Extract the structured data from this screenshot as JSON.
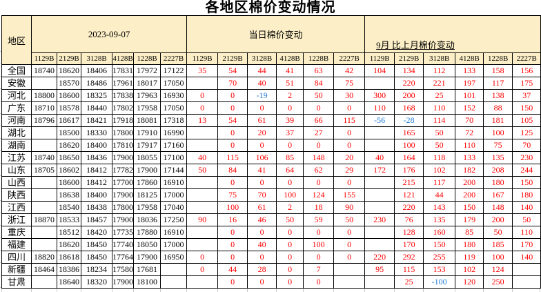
{
  "title": "各地区棉价变动情况",
  "table": {
    "region_header": "地区",
    "groups": [
      {
        "id": "date",
        "label": "2023-09-07",
        "columns": [
          "1129B",
          "2129B",
          "3128B",
          "4128B",
          "1228B",
          "2227B"
        ]
      },
      {
        "id": "daily_change",
        "label": "当日棉价变动",
        "columns": [
          "1129B",
          "2129B",
          "3128B",
          "4128B",
          "1228B",
          "2227B"
        ]
      },
      {
        "id": "monthly_change",
        "label": "9月 比上月棉价变动",
        "columns": [
          "1129B",
          "2129B",
          "3128B",
          "4128B",
          "1228B",
          "2227B"
        ]
      }
    ],
    "rows": [
      {
        "region": "全国",
        "prices": [
          "18740",
          "18620",
          "18406",
          "17831",
          "17972",
          "17122"
        ],
        "daily_change": [
          "35",
          "54",
          "44",
          "41",
          "63",
          "42"
        ],
        "monthly_change": [
          "104",
          "134",
          "112",
          "133",
          "158",
          "156"
        ]
      },
      {
        "region": "安徽",
        "prices": [
          "",
          "18570",
          "18486",
          "17961",
          "18017",
          "17050"
        ],
        "daily_change": [
          "",
          "70",
          "40",
          "51",
          "84",
          "75"
        ],
        "monthly_change": [
          "",
          "220",
          "221",
          "197",
          "117",
          "175"
        ]
      },
      {
        "region": "河北",
        "prices": [
          "18800",
          "18600",
          "18325",
          "17838",
          "17963",
          "16930"
        ],
        "daily_change": [
          "0",
          "0",
          "-19",
          "2",
          "50",
          "30"
        ],
        "monthly_change": [
          "300",
          "200",
          "25",
          "101",
          "138",
          "37"
        ]
      },
      {
        "region": "广东",
        "prices": [
          "18710",
          "18578",
          "18440",
          "17802",
          "17958",
          "17050"
        ],
        "daily_change": [
          "0",
          "0",
          "0",
          "0",
          "0",
          "0"
        ],
        "monthly_change": [
          "110",
          "168",
          "110",
          "152",
          "88",
          "150"
        ]
      },
      {
        "region": "河南",
        "prices": [
          "18796",
          "18617",
          "18421",
          "17918",
          "18081",
          "17318"
        ],
        "daily_change": [
          "13",
          "54",
          "61",
          "39",
          "66",
          "115"
        ],
        "monthly_change": [
          "-56",
          "-28",
          "114",
          "70",
          "181",
          "105"
        ]
      },
      {
        "region": "湖北",
        "prices": [
          "",
          "18500",
          "18330",
          "17800",
          "17910",
          "16990"
        ],
        "daily_change": [
          "",
          "0",
          "20",
          "37",
          "27",
          "0"
        ],
        "monthly_change": [
          "",
          "165",
          "50",
          "72",
          "100",
          "125"
        ]
      },
      {
        "region": "湖南",
        "prices": [
          "",
          "18620",
          "18400",
          "17810",
          "17917",
          "17160"
        ],
        "daily_change": [
          "",
          "0",
          "0",
          "0",
          "0",
          "0"
        ],
        "monthly_change": [
          "",
          "100",
          "50",
          "110",
          "75",
          "70"
        ]
      },
      {
        "region": "江苏",
        "prices": [
          "18740",
          "18650",
          "18436",
          "17900",
          "18055",
          "17100"
        ],
        "daily_change": [
          "40",
          "115",
          "106",
          "85",
          "148",
          "20"
        ],
        "monthly_change": [
          "40",
          "164",
          "118",
          "133",
          "135",
          "230"
        ]
      },
      {
        "region": "山东",
        "prices": [
          "18705",
          "18602",
          "18412",
          "17782",
          "17900",
          "17144"
        ],
        "daily_change": [
          "50",
          "84",
          "41",
          "64",
          "62",
          "29"
        ],
        "monthly_change": [
          "172",
          "176",
          "102",
          "182",
          "208",
          "244"
        ]
      },
      {
        "region": "山西",
        "prices": [
          "",
          "18600",
          "18412",
          "17700",
          "17860",
          "16910"
        ],
        "daily_change": [
          "",
          "0",
          "0",
          "0",
          "0",
          "0"
        ],
        "monthly_change": [
          "",
          "215",
          "117",
          "200",
          "180",
          "150"
        ]
      },
      {
        "region": "陕西",
        "prices": [
          "",
          "18638",
          "18400",
          "17900",
          "18125",
          "17000"
        ],
        "daily_change": [
          "",
          "75",
          "70",
          "100",
          "124",
          "155"
        ],
        "monthly_change": [
          "",
          "121",
          "44",
          "200",
          "167",
          "180"
        ]
      },
      {
        "region": "江西",
        "prices": [
          "",
          "18540",
          "18438",
          "17800",
          "17958",
          "17040"
        ],
        "daily_change": [
          "",
          "100",
          "61",
          "2",
          "18",
          "90"
        ],
        "monthly_change": [
          "",
          "220",
          "143",
          "150",
          "148",
          "140"
        ]
      },
      {
        "region": "浙江",
        "prices": [
          "18870",
          "18533",
          "18457",
          "17900",
          "18036",
          "17250"
        ],
        "daily_change": [
          "90",
          "16",
          "46",
          "50",
          "59",
          "50"
        ],
        "monthly_change": [
          "230",
          "76",
          "135",
          "179",
          "200",
          "50"
        ]
      },
      {
        "region": "重庆",
        "prices": [
          "",
          "18512",
          "18420",
          "17735",
          "17880",
          "16910"
        ],
        "daily_change": [
          "",
          "0",
          "0",
          "0",
          "0",
          "0"
        ],
        "monthly_change": [
          "",
          "128",
          "160",
          "85",
          "50",
          "110"
        ]
      },
      {
        "region": "福建",
        "prices": [
          "",
          "18620",
          "18450",
          "17740",
          "18050",
          "17000"
        ],
        "daily_change": [
          "",
          "0",
          "40",
          "0",
          "100",
          "0"
        ],
        "monthly_change": [
          "",
          "170",
          "150",
          "180",
          "185",
          "170"
        ]
      },
      {
        "region": "四川",
        "prices": [
          "18820",
          "18618",
          "18450",
          "17764",
          "17900",
          "16950"
        ],
        "daily_change": [
          "0",
          "0",
          "0",
          "0",
          "0",
          "0"
        ],
        "monthly_change": [
          "220",
          "292",
          "255",
          "119",
          "100",
          "140"
        ]
      },
      {
        "region": "新疆",
        "prices": [
          "18464",
          "18386",
          "18234",
          "17580",
          "17681",
          ""
        ],
        "daily_change": [
          "0",
          "44",
          "28",
          "0",
          "7",
          ""
        ],
        "monthly_change": [
          "95",
          "115",
          "153",
          "102",
          "124",
          ""
        ]
      },
      {
        "region": "甘肃",
        "prices": [
          "",
          "18640",
          "18320",
          "17900",
          "18100",
          ""
        ],
        "daily_change": [
          "",
          "0",
          "0",
          "0",
          "0",
          ""
        ],
        "monthly_change": [
          "",
          "25",
          "-100",
          "120",
          "250",
          ""
        ]
      }
    ]
  },
  "colors": {
    "header_bg": "#fcefc7",
    "border": "#000000",
    "price_text": "#000000",
    "change_positive": "#ff0000",
    "change_negative": "#1e7ad4",
    "faint_gridline": "#c9c9c9"
  }
}
